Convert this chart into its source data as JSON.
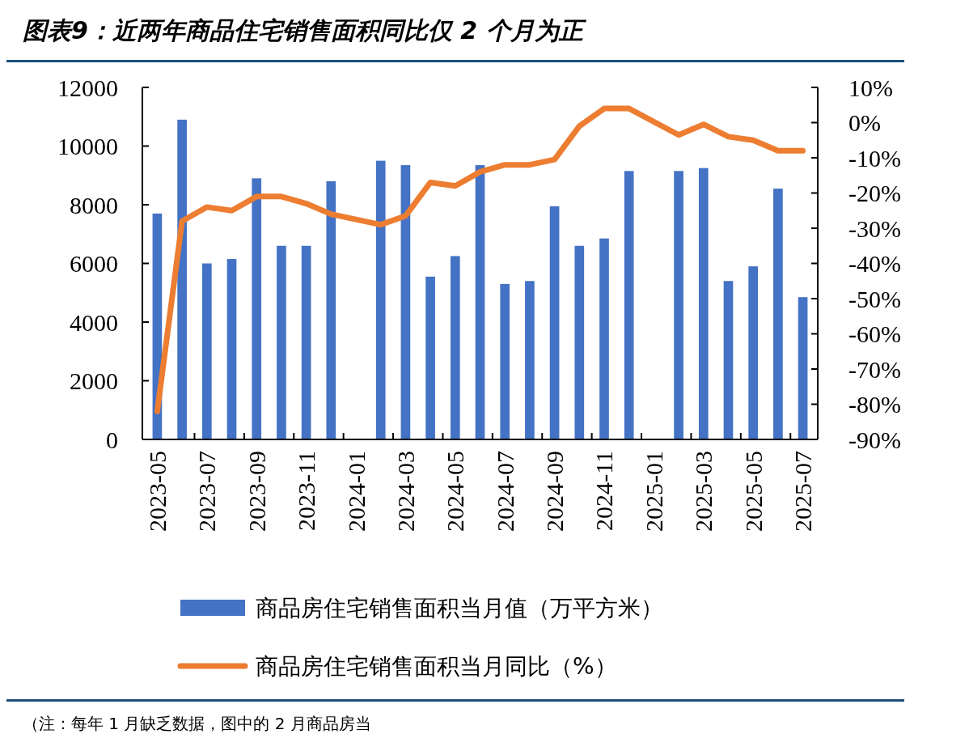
{
  "chart_data": {
    "type": "bar",
    "title": "图表9：近两年商品住宅销售面积同比仅 2 个月为正",
    "categories": [
      "2023-05",
      null,
      "2023-07",
      null,
      "2023-09",
      null,
      "2023-11",
      null,
      "2024-01",
      null,
      "2024-03",
      null,
      "2024-05",
      null,
      "2024-07",
      null,
      "2024-09",
      null,
      "2024-11",
      null,
      "2025-01",
      null,
      "2025-03",
      null,
      "2025-05",
      null,
      "2025-07"
    ],
    "series": [
      {
        "name": "商品房住宅销售面积当月值（万平方米）",
        "color": "#4472c4",
        "values": [
          7700,
          10900,
          6000,
          6150,
          8900,
          6600,
          6600,
          8800,
          null,
          9500,
          9350,
          5550,
          6250,
          9350,
          5300,
          5400,
          7950,
          6600,
          6850,
          9150,
          null,
          9150,
          9250,
          5400,
          5900,
          8550,
          4850
        ]
      },
      {
        "name": "商品房住宅销售面积当月同比（%）",
        "type": "line",
        "axis": "y2",
        "color": "#ed7d31",
        "values": [
          -82,
          -28,
          -24,
          -25,
          -21,
          -21,
          -23,
          -26,
          null,
          -29,
          -26.5,
          -17,
          -18,
          -14,
          -12,
          -12,
          -10.5,
          -1,
          4,
          4,
          null,
          -3.5,
          -0.5,
          -4,
          -5,
          -8,
          -8
        ]
      }
    ],
    "ylim": [
      0,
      12000
    ],
    "yticks": [
      0,
      2000,
      4000,
      6000,
      8000,
      10000,
      12000
    ],
    "y2lim": [
      -90,
      10
    ],
    "y2ticks": [
      {
        "value": 10,
        "label": "10%"
      },
      {
        "value": 0,
        "label": "0%"
      },
      {
        "value": -10,
        "label": "-10%"
      },
      {
        "value": -20,
        "label": "-20%"
      },
      {
        "value": -30,
        "label": "-30%"
      },
      {
        "value": -40,
        "label": "-40%"
      },
      {
        "value": -50,
        "label": "-50%"
      },
      {
        "value": -60,
        "label": "-60%"
      },
      {
        "value": -70,
        "label": "-70%"
      },
      {
        "value": -80,
        "label": "-80%"
      },
      {
        "value": -90,
        "label": "-90%"
      }
    ],
    "legend": "bottom",
    "grid": false,
    "annotations": [
      "（注：每年 1 月缺乏数据，图中的 2 月商品房当"
    ]
  }
}
